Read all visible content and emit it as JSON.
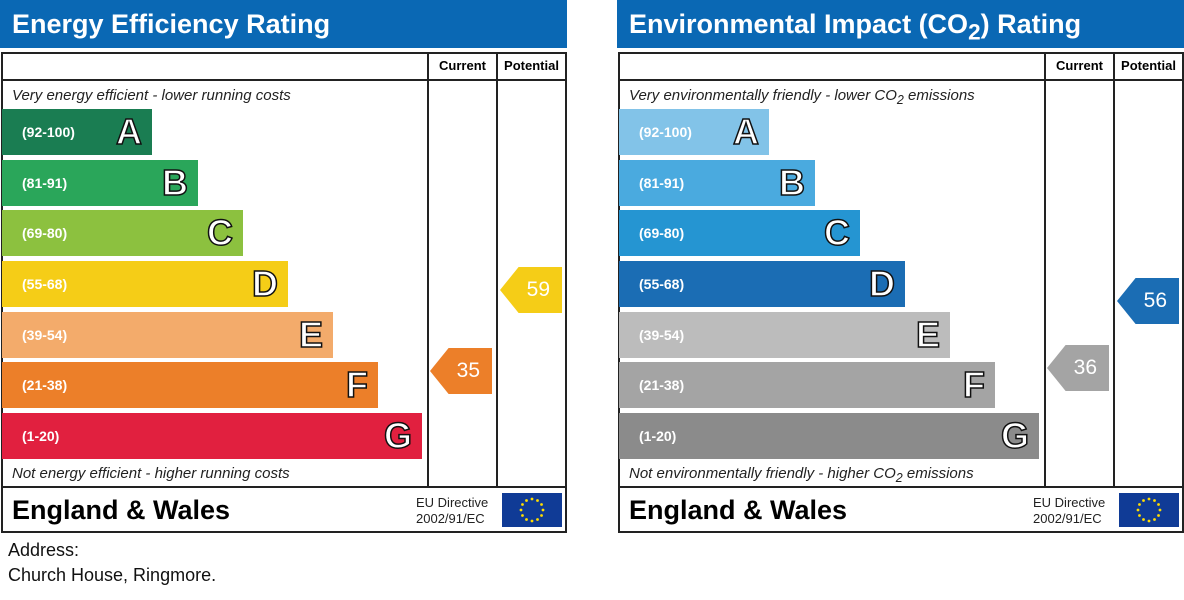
{
  "chart_data": [
    {
      "type": "bar",
      "title": "Energy Efficiency Rating",
      "col_current": "Current",
      "col_potential": "Potential",
      "top_note": "Very energy efficient - lower running costs",
      "bottom_note": "Not energy efficient - higher running costs",
      "bands": [
        {
          "range": "(92-100)",
          "letter": "A",
          "color": "#1a7d52"
        },
        {
          "range": "(81-91)",
          "letter": "B",
          "color": "#2aa65a"
        },
        {
          "range": "(69-80)",
          "letter": "C",
          "color": "#8cc13f"
        },
        {
          "range": "(55-68)",
          "letter": "D",
          "color": "#f5cd17"
        },
        {
          "range": "(39-54)",
          "letter": "E",
          "color": "#f3ab6b"
        },
        {
          "range": "(21-38)",
          "letter": "F",
          "color": "#ec7f29"
        },
        {
          "range": "(1-20)",
          "letter": "G",
          "color": "#e1203f"
        }
      ],
      "current": {
        "value": "35",
        "band": "F",
        "color": "#ec7f29"
      },
      "potential": {
        "value": "59",
        "band": "D",
        "color": "#f5cd17"
      },
      "region": "England & Wales",
      "directive": [
        "EU Directive",
        "2002/91/EC"
      ]
    },
    {
      "type": "bar",
      "title": "Environmental Impact (CO",
      "title_sub": "2",
      "title_end": ") Rating",
      "col_current": "Current",
      "col_potential": "Potential",
      "top_note": "Very environmentally friendly - lower CO",
      "top_note_sub": "2",
      "top_note_end": " emissions",
      "bottom_note": "Not environmentally friendly - higher CO",
      "bottom_note_sub": "2",
      "bottom_note_end": " emissions",
      "bands": [
        {
          "range": "(92-100)",
          "letter": "A",
          "color": "#82c3e8"
        },
        {
          "range": "(81-91)",
          "letter": "B",
          "color": "#4aaadf"
        },
        {
          "range": "(69-80)",
          "letter": "C",
          "color": "#2595d2"
        },
        {
          "range": "(55-68)",
          "letter": "D",
          "color": "#1b6db4"
        },
        {
          "range": "(39-54)",
          "letter": "E",
          "color": "#bcbcbc"
        },
        {
          "range": "(21-38)",
          "letter": "F",
          "color": "#a4a4a4"
        },
        {
          "range": "(1-20)",
          "letter": "G",
          "color": "#8b8b8b"
        }
      ],
      "current": {
        "value": "36",
        "band": "F",
        "color": "#a4a4a4"
      },
      "potential": {
        "value": "56",
        "band": "D",
        "color": "#1b6db4"
      },
      "region": "England & Wales",
      "directive": [
        "EU Directive",
        "2002/91/EC"
      ]
    }
  ],
  "address": {
    "label": "Address:",
    "value": "Church House, Ringmore."
  }
}
